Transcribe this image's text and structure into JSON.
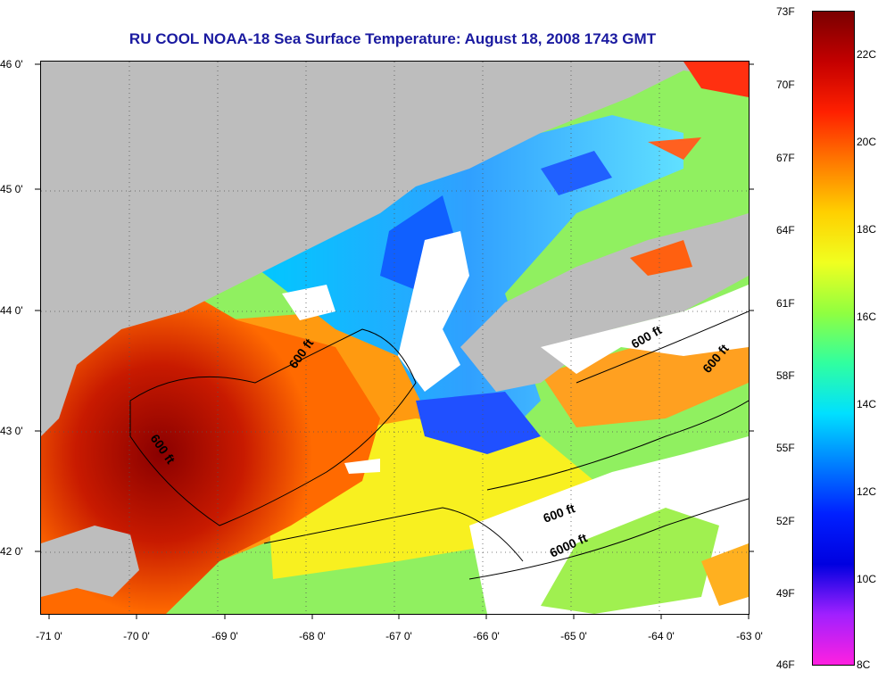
{
  "title": "RU COOL  NOAA-18  Sea Surface Temperature:  August 18, 2008 1743 GMT",
  "x_ticks": [
    "-71 0'",
    "-70 0'",
    "-69 0'",
    "-68 0'",
    "-67 0'",
    "-66 0'",
    "-65 0'",
    "-64 0'",
    "-63 0'"
  ],
  "y_ticks": [
    "46 0'",
    "45 0'",
    "44 0'",
    "43 0'",
    "42 0'"
  ],
  "contour_labels": [
    "600 ft",
    "600 ft",
    "600 ft",
    "600 ft",
    "600 ft",
    "6000 ft"
  ],
  "colorbar": {
    "fahrenheit_labels": [
      "73F",
      "70F",
      "67F",
      "64F",
      "61F",
      "58F",
      "55F",
      "52F",
      "49F",
      "46F"
    ],
    "celsius_labels": [
      "22C",
      "20C",
      "18C",
      "16C",
      "14C",
      "12C",
      "10C",
      "8C"
    ],
    "colors_top_to_bottom": [
      "#7a0000",
      "#c40000",
      "#ff2000",
      "#ff7a00",
      "#ffd000",
      "#f0ff20",
      "#90ff40",
      "#30ffa0",
      "#00e0ff",
      "#0080ff",
      "#0020ff",
      "#0000e0",
      "#a020ff",
      "#ff20e0"
    ]
  },
  "map_colors": {
    "land": "#bdbdbd",
    "cloud": "#ffffff",
    "water_warm": "#c81a00",
    "water_hot": "#8a0000",
    "water_orange": "#ff8c00",
    "water_yellow": "#ffe000",
    "water_green": "#80ff50",
    "water_cyan": "#20e0ff",
    "water_blue": "#1060ff",
    "title_color": "#1a1aa0"
  }
}
